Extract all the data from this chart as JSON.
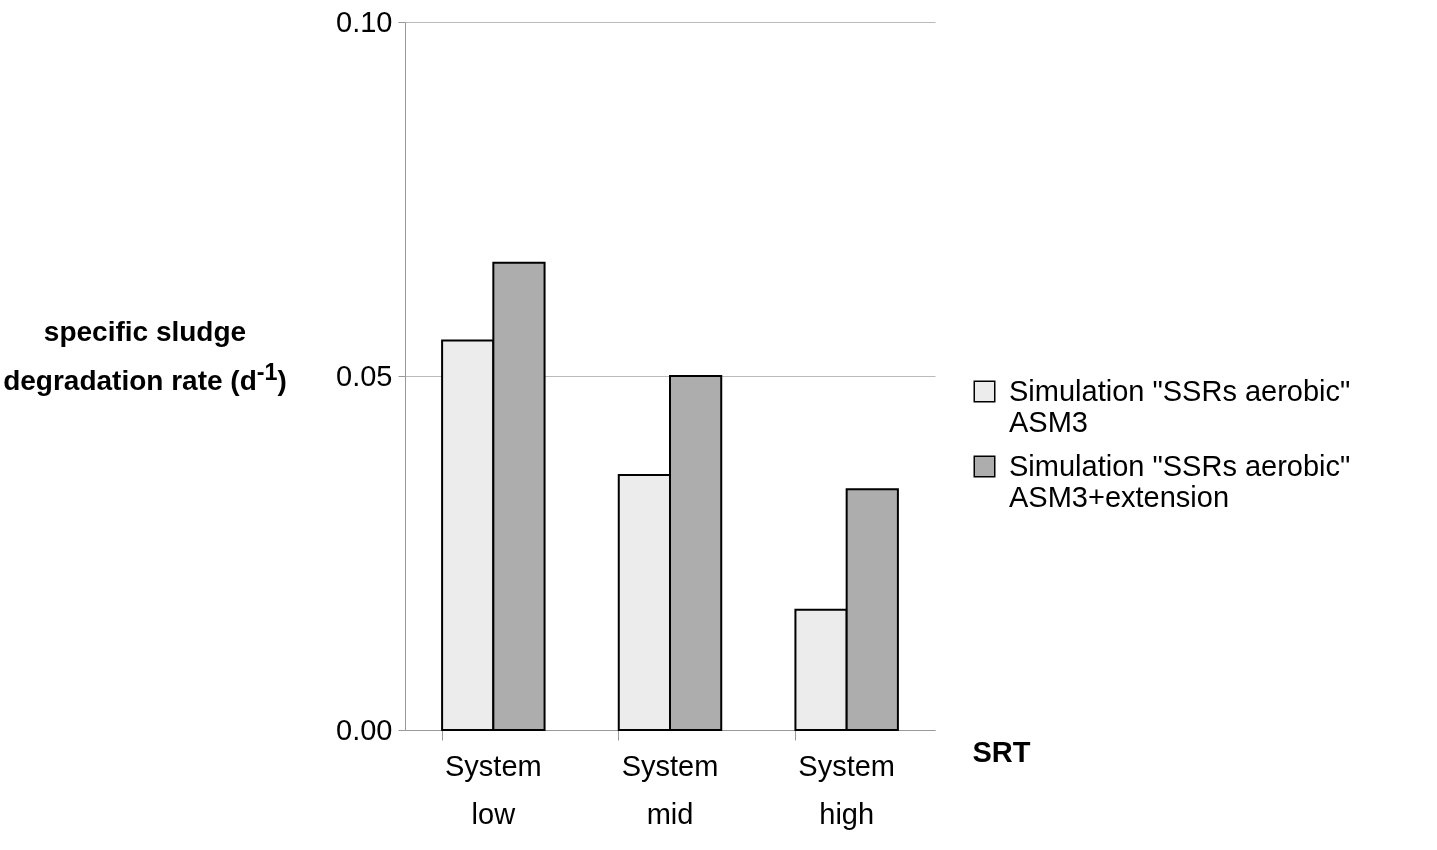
{
  "chart_data": {
    "type": "bar",
    "ylabel": "specific sludge degradation rate (d$^{-1}$)",
    "xlabel": "SRT",
    "categories": [
      "System low",
      "System mid",
      "System high"
    ],
    "series": [
      {
        "name": "Simulation \"SSRs aerobic\" ASM3",
        "color": "#ececec",
        "values": [
          0.055,
          0.036,
          0.017
        ]
      },
      {
        "name": "Simulation \"SSRs aerobic\" ASM3+extension",
        "color": "#adadad",
        "values": [
          0.066,
          0.05,
          0.034
        ]
      }
    ],
    "ylim": [
      0,
      0.1
    ],
    "yticks": [
      {
        "value": 0,
        "label": "0.00"
      },
      {
        "value": 0.05,
        "label": "0.05"
      },
      {
        "value": 0.1,
        "label": "0.10"
      }
    ],
    "grid": "y",
    "legend": "right"
  }
}
